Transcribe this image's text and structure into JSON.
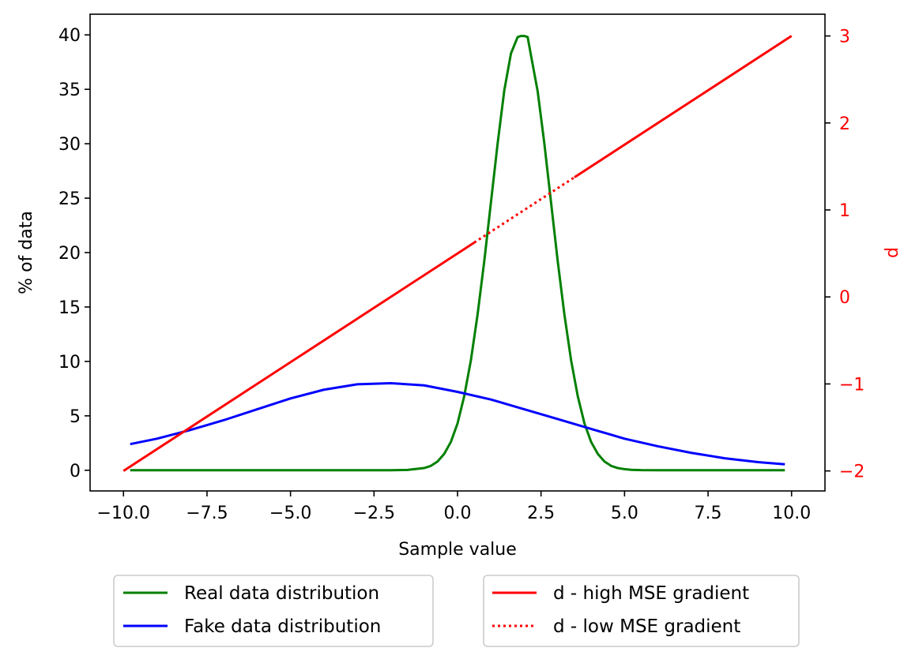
{
  "chart_data": {
    "type": "line",
    "xlabel": "Sample value",
    "ylabel_left": "% of data",
    "ylabel_right": "d",
    "xlim": [
      -11.0,
      11.0
    ],
    "ylim_left": [
      -1.9,
      41.9
    ],
    "ylim_right": [
      -2.23,
      3.25
    ],
    "x_ticks": [
      -10.0,
      -7.5,
      -5.0,
      -2.5,
      0.0,
      2.5,
      5.0,
      7.5,
      10.0
    ],
    "x_tick_labels": [
      "−10.0",
      "−7.5",
      "−5.0",
      "−2.5",
      "0.0",
      "2.5",
      "5.0",
      "7.5",
      "10.0"
    ],
    "y_left_ticks": [
      0,
      5,
      10,
      15,
      20,
      25,
      30,
      35,
      40
    ],
    "y_left_tick_labels": [
      "0",
      "5",
      "10",
      "15",
      "20",
      "25",
      "30",
      "35",
      "40"
    ],
    "y_right_ticks": [
      -2,
      -1,
      0,
      1,
      2,
      3
    ],
    "y_right_tick_labels": [
      "−2",
      "−1",
      "0",
      "1",
      "2",
      "3"
    ],
    "grid": false,
    "legend_placement": "below the plot, two columns",
    "series": [
      {
        "name": "Real data distribution",
        "axis": "left",
        "color": "#008000",
        "style": "solid",
        "x": [
          -9.8,
          -9.0,
          -8.0,
          -7.0,
          -6.0,
          -5.0,
          -4.0,
          -3.0,
          -2.0,
          -1.5,
          -1.0,
          -0.8,
          -0.6,
          -0.4,
          -0.2,
          0.0,
          0.2,
          0.4,
          0.6,
          0.8,
          1.0,
          1.2,
          1.4,
          1.6,
          1.8,
          1.9,
          2.0,
          2.1,
          2.2,
          2.4,
          2.6,
          2.8,
          3.0,
          3.2,
          3.4,
          3.6,
          3.8,
          4.0,
          4.2,
          4.4,
          4.6,
          4.8,
          5.0,
          5.2,
          5.5,
          6.0,
          7.0,
          8.0,
          9.0,
          9.8
        ],
        "values": [
          0.0,
          0.0,
          0.0,
          0.0,
          0.0,
          0.0,
          0.0,
          0.0,
          0.0,
          0.03,
          0.2,
          0.4,
          0.8,
          1.5,
          2.6,
          4.3,
          6.8,
          10.1,
          14.3,
          19.2,
          24.6,
          30.0,
          34.9,
          38.3,
          39.8,
          39.9,
          39.9,
          39.8,
          38.1,
          34.8,
          30.0,
          24.6,
          19.2,
          14.3,
          10.1,
          6.8,
          4.3,
          2.6,
          1.5,
          0.8,
          0.4,
          0.2,
          0.1,
          0.04,
          0.01,
          0.0,
          0.0,
          0.0,
          0.0,
          0.0
        ]
      },
      {
        "name": "Fake data distribution",
        "axis": "left",
        "color": "#0000ff",
        "style": "solid",
        "x": [
          -9.8,
          -9.0,
          -8.0,
          -7.0,
          -6.0,
          -5.0,
          -4.0,
          -3.0,
          -2.0,
          -1.0,
          0.0,
          1.0,
          2.0,
          3.0,
          4.0,
          5.0,
          6.0,
          7.0,
          8.0,
          9.0,
          9.8
        ],
        "values": [
          2.4,
          2.9,
          3.7,
          4.6,
          5.6,
          6.6,
          7.4,
          7.9,
          8.0,
          7.8,
          7.2,
          6.5,
          5.6,
          4.7,
          3.8,
          2.9,
          2.2,
          1.6,
          1.1,
          0.75,
          0.55
        ]
      },
      {
        "name": "d - high MSE gradient",
        "axis": "right",
        "color": "#ff0000",
        "style": "solid",
        "segments": [
          {
            "x": [
              -10.0,
              0.5
            ],
            "values": [
              -2.0,
              0.625
            ]
          },
          {
            "x": [
              3.5,
              10.0
            ],
            "values": [
              1.375,
              3.0
            ]
          }
        ]
      },
      {
        "name": "d - low MSE gradient",
        "axis": "right",
        "color": "#ff0000",
        "style": "dotted",
        "x": [
          0.5,
          3.5
        ],
        "values": [
          0.625,
          1.375
        ]
      }
    ]
  }
}
